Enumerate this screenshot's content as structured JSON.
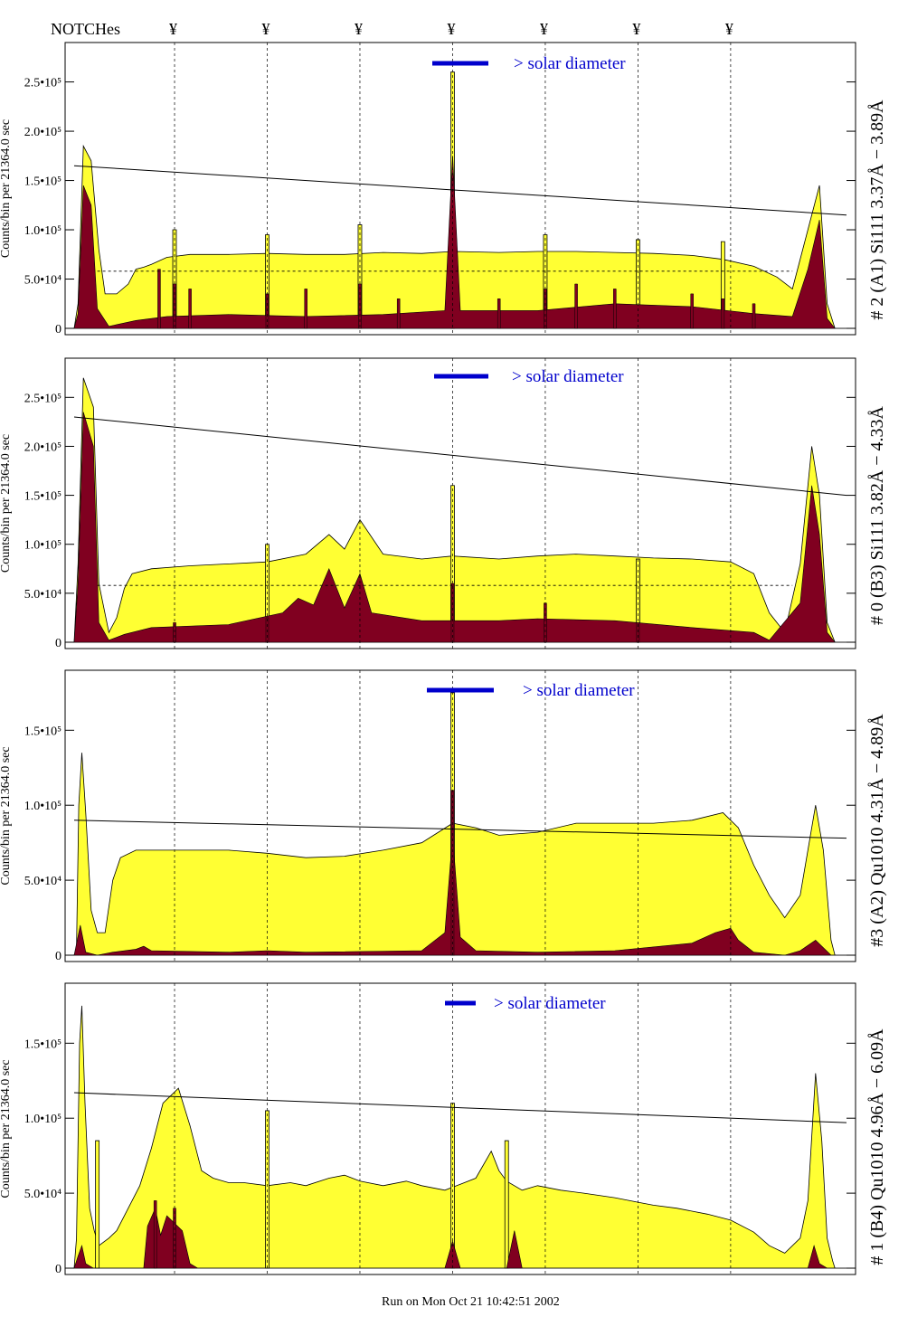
{
  "header": {
    "notches_label": "NOTCHes",
    "notch_symbol": "¥"
  },
  "footer": {
    "run_text": "Run on Mon Oct 21 10:42:51 2002"
  },
  "colors": {
    "fill": "#ffff33",
    "dark": "#800020",
    "legend": "#0000cc",
    "line": "#000000"
  },
  "chart_data": [
    {
      "type": "area",
      "title": "# 2 (A1) Si111  3.37Å − 3.89Å",
      "ylabel": "Counts/bin per  21364.0 sec",
      "ylim": [
        0,
        290000
      ],
      "xlim": [
        0,
        100
      ],
      "yticks": [
        0,
        50000,
        100000,
        150000,
        200000,
        250000
      ],
      "ytick_labels": [
        "0",
        "5.0•10⁴",
        "1.0•10⁵",
        "1.5•10⁵",
        "2.0•10⁵",
        "2.5•10⁵"
      ],
      "legend": "> solar diameter",
      "notches": [
        13,
        25,
        37,
        49,
        61,
        73,
        85
      ],
      "trend_line": [
        [
          0,
          165000
        ],
        [
          100,
          115000
        ]
      ],
      "dashed_level": 58000,
      "fill_points": [
        [
          0,
          0
        ],
        [
          0.5,
          25000
        ],
        [
          1.2,
          185000
        ],
        [
          2.2,
          170000
        ],
        [
          3.2,
          80000
        ],
        [
          4,
          35000
        ],
        [
          5.5,
          35000
        ],
        [
          7,
          45000
        ],
        [
          8,
          60000
        ],
        [
          9,
          62000
        ],
        [
          10,
          65000
        ],
        [
          12,
          72000
        ],
        [
          15,
          75000
        ],
        [
          20,
          75000
        ],
        [
          25,
          76000
        ],
        [
          30,
          75000
        ],
        [
          35,
          75000
        ],
        [
          40,
          77000
        ],
        [
          45,
          76000
        ],
        [
          49,
          78000
        ],
        [
          55,
          77000
        ],
        [
          60,
          78000
        ],
        [
          65,
          78000
        ],
        [
          70,
          77000
        ],
        [
          75,
          76000
        ],
        [
          80,
          74000
        ],
        [
          84,
          70000
        ],
        [
          88,
          63000
        ],
        [
          91,
          52000
        ],
        [
          93,
          40000
        ],
        [
          95,
          100000
        ],
        [
          96.5,
          145000
        ],
        [
          97.5,
          25000
        ],
        [
          98.5,
          0
        ],
        [
          100,
          0
        ]
      ],
      "fill_spikes": [
        [
          13,
          100000
        ],
        [
          25,
          95000
        ],
        [
          37,
          105000
        ],
        [
          49,
          260000
        ],
        [
          61,
          95000
        ],
        [
          73,
          90000
        ],
        [
          84,
          88000
        ]
      ],
      "dark_points": [
        [
          0,
          0
        ],
        [
          0.5,
          15000
        ],
        [
          1.2,
          145000
        ],
        [
          2.2,
          125000
        ],
        [
          3,
          20000
        ],
        [
          4.5,
          2000
        ],
        [
          8,
          8000
        ],
        [
          12,
          12000
        ],
        [
          20,
          14000
        ],
        [
          30,
          12000
        ],
        [
          40,
          14000
        ],
        [
          48,
          18000
        ],
        [
          49,
          175000
        ],
        [
          50,
          18000
        ],
        [
          60,
          18000
        ],
        [
          70,
          25000
        ],
        [
          80,
          22000
        ],
        [
          88,
          15000
        ],
        [
          93,
          12000
        ],
        [
          95,
          60000
        ],
        [
          96.5,
          110000
        ],
        [
          97.5,
          10000
        ],
        [
          98.5,
          0
        ],
        [
          100,
          0
        ]
      ],
      "dark_spikes": [
        [
          11,
          60000
        ],
        [
          13,
          45000
        ],
        [
          15,
          40000
        ],
        [
          25,
          35000
        ],
        [
          30,
          40000
        ],
        [
          37,
          45000
        ],
        [
          42,
          30000
        ],
        [
          55,
          30000
        ],
        [
          61,
          40000
        ],
        [
          65,
          45000
        ],
        [
          70,
          40000
        ],
        [
          80,
          35000
        ],
        [
          84,
          30000
        ],
        [
          88,
          25000
        ]
      ]
    },
    {
      "type": "area",
      "title": "# 0 (B3) Si111  3.82Å − 4.33Å",
      "ylabel": "Counts/bin per  21364.0 sec",
      "ylim": [
        0,
        290000
      ],
      "xlim": [
        0,
        100
      ],
      "yticks": [
        0,
        50000,
        100000,
        150000,
        200000,
        250000
      ],
      "ytick_labels": [
        "0",
        "5.0•10⁴",
        "1.0•10⁵",
        "1.5•10⁵",
        "2.0•10⁵",
        "2.5•10⁵"
      ],
      "legend": "> solar diameter",
      "notches": [
        13,
        25,
        37,
        49,
        61,
        73,
        85
      ],
      "trend_line": [
        [
          0,
          230000
        ],
        [
          100,
          150000
        ]
      ],
      "dashed_level": 58000,
      "fill_points": [
        [
          0,
          0
        ],
        [
          0.5,
          80000
        ],
        [
          1.2,
          270000
        ],
        [
          2.5,
          240000
        ],
        [
          3.2,
          60000
        ],
        [
          4.5,
          10000
        ],
        [
          5.5,
          25000
        ],
        [
          6.5,
          55000
        ],
        [
          7.5,
          70000
        ],
        [
          10,
          75000
        ],
        [
          15,
          78000
        ],
        [
          20,
          80000
        ],
        [
          25,
          82000
        ],
        [
          30,
          90000
        ],
        [
          33,
          110000
        ],
        [
          35,
          95000
        ],
        [
          37,
          125000
        ],
        [
          40,
          90000
        ],
        [
          45,
          85000
        ],
        [
          49,
          88000
        ],
        [
          55,
          85000
        ],
        [
          60,
          88000
        ],
        [
          65,
          90000
        ],
        [
          70,
          88000
        ],
        [
          75,
          86000
        ],
        [
          80,
          85000
        ],
        [
          85,
          82000
        ],
        [
          88,
          70000
        ],
        [
          90,
          30000
        ],
        [
          92,
          10000
        ],
        [
          94,
          80000
        ],
        [
          95.5,
          200000
        ],
        [
          96.5,
          150000
        ],
        [
          97.5,
          20000
        ],
        [
          98.5,
          0
        ],
        [
          100,
          0
        ]
      ],
      "fill_spikes": [
        [
          25,
          100000
        ],
        [
          49,
          160000
        ],
        [
          73,
          85000
        ]
      ],
      "dark_points": [
        [
          0,
          0
        ],
        [
          0.5,
          60000
        ],
        [
          1.2,
          235000
        ],
        [
          2.5,
          200000
        ],
        [
          3.2,
          20000
        ],
        [
          4.5,
          2000
        ],
        [
          6.5,
          8000
        ],
        [
          10,
          15000
        ],
        [
          20,
          18000
        ],
        [
          27,
          30000
        ],
        [
          29,
          45000
        ],
        [
          31,
          38000
        ],
        [
          33,
          75000
        ],
        [
          35,
          35000
        ],
        [
          37,
          70000
        ],
        [
          38.5,
          30000
        ],
        [
          45,
          22000
        ],
        [
          55,
          22000
        ],
        [
          60,
          24000
        ],
        [
          70,
          22000
        ],
        [
          80,
          15000
        ],
        [
          88,
          10000
        ],
        [
          90,
          2000
        ],
        [
          94,
          40000
        ],
        [
          95.5,
          160000
        ],
        [
          96.5,
          110000
        ],
        [
          97.5,
          10000
        ],
        [
          98.5,
          0
        ],
        [
          100,
          0
        ]
      ],
      "dark_spikes": [
        [
          13,
          20000
        ],
        [
          25,
          25000
        ],
        [
          49,
          60000
        ],
        [
          61,
          40000
        ],
        [
          73,
          20000
        ]
      ]
    },
    {
      "type": "area",
      "title": "#3 (A2) Qu1010  4.31Å − 4.89Å",
      "ylabel": "Counts/bin per  21364.0 sec",
      "ylim": [
        0,
        190000
      ],
      "xlim": [
        0,
        100
      ],
      "yticks": [
        0,
        50000,
        100000,
        150000
      ],
      "ytick_labels": [
        "0",
        "5.0•10⁴",
        "1.0•10⁵",
        "1.5•10⁵"
      ],
      "legend": "> solar diameter",
      "notches": [
        13,
        25,
        37,
        49,
        61,
        73,
        85
      ],
      "trend_line": [
        [
          0,
          90000
        ],
        [
          100,
          78000
        ]
      ],
      "dashed_level": null,
      "fill_points": [
        [
          0,
          0
        ],
        [
          0.3,
          5000
        ],
        [
          0.6,
          100000
        ],
        [
          1,
          135000
        ],
        [
          1.5,
          95000
        ],
        [
          2.2,
          30000
        ],
        [
          3,
          15000
        ],
        [
          4,
          15000
        ],
        [
          5,
          50000
        ],
        [
          6,
          65000
        ],
        [
          8,
          70000
        ],
        [
          12,
          70000
        ],
        [
          16,
          70000
        ],
        [
          20,
          70000
        ],
        [
          25,
          68000
        ],
        [
          30,
          65000
        ],
        [
          35,
          66000
        ],
        [
          40,
          70000
        ],
        [
          45,
          75000
        ],
        [
          49,
          88000
        ],
        [
          52,
          85000
        ],
        [
          55,
          80000
        ],
        [
          60,
          82000
        ],
        [
          65,
          88000
        ],
        [
          70,
          88000
        ],
        [
          75,
          88000
        ],
        [
          80,
          90000
        ],
        [
          84,
          95000
        ],
        [
          86,
          85000
        ],
        [
          88,
          60000
        ],
        [
          90,
          40000
        ],
        [
          92,
          25000
        ],
        [
          94,
          40000
        ],
        [
          96,
          100000
        ],
        [
          97,
          70000
        ],
        [
          98,
          10000
        ],
        [
          98.5,
          0
        ],
        [
          100,
          0
        ]
      ],
      "fill_spikes": [
        [
          49,
          175000
        ]
      ],
      "dark_points": [
        [
          0,
          0
        ],
        [
          0.8,
          20000
        ],
        [
          1.5,
          2000
        ],
        [
          3,
          0
        ],
        [
          5,
          2000
        ],
        [
          8,
          4000
        ],
        [
          9,
          6000
        ],
        [
          10,
          3000
        ],
        [
          20,
          2000
        ],
        [
          25,
          3000
        ],
        [
          30,
          2000
        ],
        [
          45,
          3000
        ],
        [
          48,
          15000
        ],
        [
          49,
          80000
        ],
        [
          50,
          12000
        ],
        [
          52,
          3000
        ],
        [
          60,
          2000
        ],
        [
          70,
          3000
        ],
        [
          80,
          8000
        ],
        [
          83,
          15000
        ],
        [
          85,
          18000
        ],
        [
          86,
          10000
        ],
        [
          88,
          2000
        ],
        [
          92,
          0
        ],
        [
          94,
          3000
        ],
        [
          96,
          10000
        ],
        [
          98,
          0
        ],
        [
          100,
          0
        ]
      ],
      "dark_spikes": [
        [
          49,
          110000
        ]
      ]
    },
    {
      "type": "area",
      "title": "# 1 (B4) Qu1010 4.96Å − 6.09Å",
      "ylabel": "Counts/bin per  21364.0 sec",
      "ylim": [
        0,
        190000
      ],
      "xlim": [
        0,
        100
      ],
      "yticks": [
        0,
        50000,
        100000,
        150000
      ],
      "ytick_labels": [
        "0",
        "5.0•10⁴",
        "1.0•10⁵",
        "1.5•10⁵"
      ],
      "legend": "> solar diameter",
      "notches": [
        13,
        25,
        37,
        49,
        61,
        73,
        85
      ],
      "trend_line": [
        [
          0,
          117000
        ],
        [
          100,
          97000
        ]
      ],
      "dashed_level": null,
      "fill_points": [
        [
          0,
          0
        ],
        [
          0.3,
          20000
        ],
        [
          0.7,
          150000
        ],
        [
          1,
          175000
        ],
        [
          1.4,
          110000
        ],
        [
          2,
          40000
        ],
        [
          2.6,
          25000
        ],
        [
          3.2,
          15000
        ],
        [
          4.5,
          20000
        ],
        [
          5.5,
          25000
        ],
        [
          7,
          40000
        ],
        [
          8.5,
          55000
        ],
        [
          10,
          80000
        ],
        [
          11.5,
          110000
        ],
        [
          12.5,
          115000
        ],
        [
          13.5,
          120000
        ],
        [
          15,
          95000
        ],
        [
          16.5,
          65000
        ],
        [
          18,
          60000
        ],
        [
          20,
          57000
        ],
        [
          22,
          57000
        ],
        [
          25,
          55000
        ],
        [
          28,
          57000
        ],
        [
          30,
          55000
        ],
        [
          33,
          60000
        ],
        [
          35,
          62000
        ],
        [
          37,
          58000
        ],
        [
          40,
          55000
        ],
        [
          43,
          58000
        ],
        [
          45,
          55000
        ],
        [
          48,
          52000
        ],
        [
          50,
          56000
        ],
        [
          52,
          60000
        ],
        [
          54,
          78000
        ],
        [
          55,
          65000
        ],
        [
          56,
          58000
        ],
        [
          58,
          52000
        ],
        [
          60,
          55000
        ],
        [
          63,
          52000
        ],
        [
          66,
          50000
        ],
        [
          70,
          47000
        ],
        [
          73,
          44000
        ],
        [
          75,
          42000
        ],
        [
          78,
          40000
        ],
        [
          80,
          38000
        ],
        [
          82,
          36000
        ],
        [
          85,
          32000
        ],
        [
          88,
          24000
        ],
        [
          90,
          15000
        ],
        [
          92,
          10000
        ],
        [
          94,
          20000
        ],
        [
          95,
          45000
        ],
        [
          96,
          130000
        ],
        [
          96.8,
          85000
        ],
        [
          97.5,
          20000
        ],
        [
          98.2,
          5000
        ],
        [
          98.5,
          0
        ],
        [
          100,
          0
        ]
      ],
      "fill_spikes": [
        [
          3,
          85000
        ],
        [
          25,
          105000
        ],
        [
          49,
          110000
        ],
        [
          56,
          85000
        ]
      ],
      "dark_points": [
        [
          0,
          0
        ],
        [
          0.5,
          8000
        ],
        [
          1,
          15000
        ],
        [
          1.5,
          3000
        ],
        [
          2.5,
          0
        ],
        [
          9,
          0
        ],
        [
          9.5,
          28000
        ],
        [
          10.5,
          40000
        ],
        [
          11.2,
          22000
        ],
        [
          12,
          35000
        ],
        [
          13,
          30000
        ],
        [
          14,
          25000
        ],
        [
          15,
          3000
        ],
        [
          16,
          0
        ],
        [
          48,
          0
        ],
        [
          49,
          18000
        ],
        [
          50,
          0
        ],
        [
          56,
          0
        ],
        [
          57,
          25000
        ],
        [
          58,
          0
        ],
        [
          95,
          0
        ],
        [
          95.8,
          15000
        ],
        [
          96.5,
          3000
        ],
        [
          97.5,
          0
        ],
        [
          100,
          0
        ]
      ],
      "dark_spikes": [
        [
          10.5,
          45000
        ],
        [
          13,
          40000
        ]
      ]
    }
  ]
}
